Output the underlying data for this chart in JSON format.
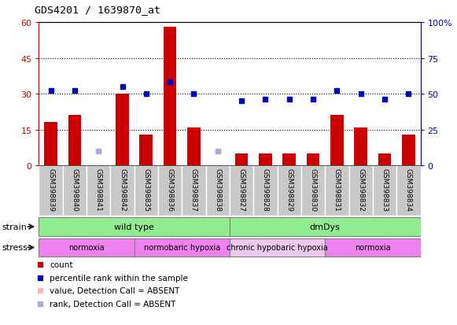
{
  "title": "GDS4201 / 1639870_at",
  "samples": [
    "GSM398839",
    "GSM398840",
    "GSM398841",
    "GSM398842",
    "GSM398835",
    "GSM398836",
    "GSM398837",
    "GSM398838",
    "GSM398827",
    "GSM398828",
    "GSM398829",
    "GSM398830",
    "GSM398831",
    "GSM398832",
    "GSM398833",
    "GSM398834"
  ],
  "count_values": [
    18,
    21,
    0,
    30,
    13,
    58,
    16,
    0,
    5,
    5,
    5,
    5,
    21,
    16,
    5,
    13
  ],
  "count_absent": [
    false,
    false,
    true,
    false,
    false,
    false,
    false,
    true,
    false,
    false,
    false,
    false,
    false,
    false,
    false,
    false
  ],
  "rank_values": [
    52,
    52,
    10,
    55,
    50,
    58,
    50,
    10,
    45,
    46,
    46,
    46,
    52,
    50,
    46,
    50
  ],
  "rank_absent": [
    false,
    false,
    true,
    false,
    false,
    false,
    false,
    true,
    false,
    false,
    false,
    false,
    false,
    false,
    false,
    false
  ],
  "ylim_left": [
    0,
    60
  ],
  "ylim_right": [
    0,
    100
  ],
  "yticks_left": [
    0,
    15,
    30,
    45,
    60
  ],
  "yticks_right": [
    0,
    25,
    50,
    75,
    100
  ],
  "ytick_labels_left": [
    "0",
    "15",
    "30",
    "45",
    "60"
  ],
  "ytick_labels_right": [
    "0",
    "25",
    "50",
    "75",
    "100%"
  ],
  "bar_color": "#CC0000",
  "absent_bar_color": "#FFB6C1",
  "rank_color": "#0000BB",
  "absent_rank_color": "#AAAADD",
  "sample_bg_color": "#C8C8C8",
  "strain_color": "#90EE90",
  "stress_color_normal": "#EE82EE",
  "stress_color_hypoxia_light": "#EEC8EE",
  "left_axis_color": "#CC0000",
  "right_axis_color": "#0000BB",
  "strain_groups": [
    {
      "label": "wild type",
      "start": 0,
      "end": 8
    },
    {
      "label": "dmDys",
      "start": 8,
      "end": 16
    }
  ],
  "stress_groups": [
    {
      "label": "normoxia",
      "start": 0,
      "end": 4,
      "light": false
    },
    {
      "label": "normobaric hypoxia",
      "start": 4,
      "end": 8,
      "light": false
    },
    {
      "label": "chronic hypobaric hypoxia",
      "start": 8,
      "end": 12,
      "light": true
    },
    {
      "label": "normoxia",
      "start": 12,
      "end": 16,
      "light": false
    }
  ],
  "legend_items": [
    {
      "color": "#CC0000",
      "label": "count"
    },
    {
      "color": "#0000BB",
      "label": "percentile rank within the sample"
    },
    {
      "color": "#FFB6C1",
      "label": "value, Detection Call = ABSENT"
    },
    {
      "color": "#AAAADD",
      "label": "rank, Detection Call = ABSENT"
    }
  ]
}
